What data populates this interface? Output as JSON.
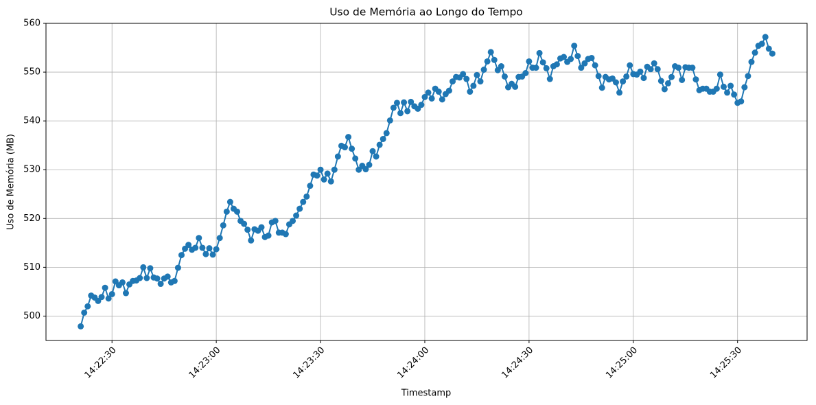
{
  "chart_data": {
    "type": "line",
    "title": "Uso de Memória ao Longo do Tempo",
    "xlabel": "Timestamp",
    "ylabel": "Uso de Memória (MB)",
    "grid": true,
    "xlim": [
      "14:22:11",
      "14:25:50"
    ],
    "xticks": [
      "14:22:30",
      "14:23:00",
      "14:23:30",
      "14:24:00",
      "14:24:30",
      "14:25:00",
      "14:25:30"
    ],
    "ylim": [
      495,
      560
    ],
    "yticks": [
      500,
      510,
      520,
      530,
      540,
      550,
      560
    ],
    "x": [
      "14:22:21",
      "14:22:22",
      "14:22:23",
      "14:22:24",
      "14:22:25",
      "14:22:26",
      "14:22:27",
      "14:22:28",
      "14:22:29",
      "14:22:30",
      "14:22:31",
      "14:22:32",
      "14:22:33",
      "14:22:34",
      "14:22:35",
      "14:22:36",
      "14:22:37",
      "14:22:38",
      "14:22:39",
      "14:22:40",
      "14:22:41",
      "14:22:42",
      "14:22:43",
      "14:22:44",
      "14:22:45",
      "14:22:46",
      "14:22:47",
      "14:22:48",
      "14:22:49",
      "14:22:50",
      "14:22:51",
      "14:22:52",
      "14:22:53",
      "14:22:54",
      "14:22:55",
      "14:22:56",
      "14:22:57",
      "14:22:58",
      "14:22:59",
      "14:23:00",
      "14:23:01",
      "14:23:02",
      "14:23:03",
      "14:23:04",
      "14:23:05",
      "14:23:06",
      "14:23:07",
      "14:23:08",
      "14:23:09",
      "14:23:10",
      "14:23:11",
      "14:23:12",
      "14:23:13",
      "14:23:14",
      "14:23:15",
      "14:23:16",
      "14:23:17",
      "14:23:18",
      "14:23:19",
      "14:23:20",
      "14:23:21",
      "14:23:22",
      "14:23:23",
      "14:23:24",
      "14:23:25",
      "14:23:26",
      "14:23:27",
      "14:23:28",
      "14:23:29",
      "14:23:30",
      "14:23:31",
      "14:23:32",
      "14:23:33",
      "14:23:34",
      "14:23:35",
      "14:23:36",
      "14:23:37",
      "14:23:38",
      "14:23:39",
      "14:23:40",
      "14:23:41",
      "14:23:42",
      "14:23:43",
      "14:23:44",
      "14:23:45",
      "14:23:46",
      "14:23:47",
      "14:23:48",
      "14:23:49",
      "14:23:50",
      "14:23:51",
      "14:23:52",
      "14:23:53",
      "14:23:54",
      "14:23:55",
      "14:23:56",
      "14:23:57",
      "14:23:58",
      "14:23:59",
      "14:24:00",
      "14:24:01",
      "14:24:02",
      "14:24:03",
      "14:24:04",
      "14:24:05",
      "14:24:06",
      "14:24:07",
      "14:24:08",
      "14:24:09",
      "14:24:10",
      "14:24:11",
      "14:24:12",
      "14:24:13",
      "14:24:14",
      "14:24:15",
      "14:24:16",
      "14:24:17",
      "14:24:18",
      "14:24:19",
      "14:24:20",
      "14:24:21",
      "14:24:22",
      "14:24:23",
      "14:24:24",
      "14:24:25",
      "14:24:26",
      "14:24:27",
      "14:24:28",
      "14:24:29",
      "14:24:30",
      "14:24:31",
      "14:24:32",
      "14:24:33",
      "14:24:34",
      "14:24:35",
      "14:24:36",
      "14:24:37",
      "14:24:38",
      "14:24:39",
      "14:24:40",
      "14:24:41",
      "14:24:42",
      "14:24:43",
      "14:24:44",
      "14:24:45",
      "14:24:46",
      "14:24:47",
      "14:24:48",
      "14:24:49",
      "14:24:50",
      "14:24:51",
      "14:24:52",
      "14:24:53",
      "14:24:54",
      "14:24:55",
      "14:24:56",
      "14:24:57",
      "14:24:58",
      "14:24:59",
      "14:25:00",
      "14:25:01",
      "14:25:02",
      "14:25:03",
      "14:25:04",
      "14:25:05",
      "14:25:06",
      "14:25:07",
      "14:25:08",
      "14:25:09",
      "14:25:10",
      "14:25:11",
      "14:25:12",
      "14:25:13",
      "14:25:14",
      "14:25:15",
      "14:25:16",
      "14:25:17",
      "14:25:18",
      "14:25:19",
      "14:25:20",
      "14:25:21",
      "14:25:22",
      "14:25:23",
      "14:25:24",
      "14:25:25",
      "14:25:26",
      "14:25:27",
      "14:25:28",
      "14:25:29",
      "14:25:30",
      "14:25:31",
      "14:25:32",
      "14:25:33",
      "14:25:34",
      "14:25:35",
      "14:25:36",
      "14:25:37",
      "14:25:38",
      "14:25:39",
      "14:25:40"
    ],
    "series": [
      {
        "color": "#1f77b4",
        "values": [
          497.9,
          500.7,
          502.0,
          504.2,
          503.8,
          503.1,
          503.9,
          505.8,
          503.6,
          504.5,
          507.1,
          506.3,
          506.9,
          504.7,
          506.5,
          507.2,
          507.3,
          507.8,
          510.0,
          507.8,
          509.8,
          507.9,
          507.7,
          506.6,
          507.7,
          508.1,
          506.9,
          507.2,
          509.9,
          512.5,
          513.8,
          514.6,
          513.6,
          514.0,
          516.0,
          514.0,
          512.7,
          513.9,
          512.6,
          513.7,
          516.0,
          518.6,
          521.4,
          523.4,
          522.0,
          521.4,
          519.5,
          518.9,
          517.7,
          515.5,
          517.8,
          517.5,
          518.2,
          516.2,
          516.5,
          519.2,
          519.5,
          517.1,
          517.1,
          516.8,
          518.8,
          519.5,
          520.6,
          522.0,
          523.4,
          524.5,
          526.7,
          529.0,
          528.8,
          530.0,
          528.0,
          529.2,
          527.6,
          530.0,
          532.7,
          534.9,
          534.6,
          536.7,
          534.3,
          532.3,
          530.0,
          530.8,
          530.1,
          531.0,
          533.8,
          532.7,
          535.1,
          536.3,
          537.5,
          540.1,
          542.7,
          543.7,
          541.6,
          543.8,
          542.0,
          543.9,
          543.0,
          542.5,
          543.3,
          544.9,
          545.8,
          544.6,
          546.6,
          546.0,
          544.4,
          545.5,
          546.2,
          548.1,
          549.0,
          548.9,
          549.6,
          548.6,
          546.0,
          547.2,
          549.4,
          548.1,
          550.5,
          552.2,
          554.1,
          552.5,
          550.4,
          551.2,
          549.1,
          546.9,
          547.6,
          547.0,
          549.0,
          549.1,
          549.8,
          552.2,
          550.9,
          550.9,
          553.9,
          552.0,
          550.8,
          548.6,
          551.2,
          551.6,
          552.8,
          553.1,
          552.1,
          552.7,
          555.4,
          553.3,
          550.9,
          551.8,
          552.7,
          552.9,
          551.4,
          549.2,
          546.8,
          549.0,
          548.5,
          548.7,
          547.9,
          545.8,
          548.1,
          549.1,
          551.4,
          549.6,
          549.5,
          550.1,
          548.8,
          551.1,
          550.6,
          551.8,
          550.6,
          548.2,
          546.5,
          547.7,
          549.0,
          551.2,
          550.9,
          548.4,
          551.0,
          550.9,
          550.9,
          548.5,
          546.3,
          546.6,
          546.6,
          546.0,
          546.0,
          546.6,
          549.5,
          547.0,
          545.8,
          547.2,
          545.4,
          543.7,
          544.0,
          546.9,
          549.2,
          552.1,
          554.0,
          555.4,
          555.8,
          557.2,
          554.8,
          553.8
        ]
      }
    ]
  }
}
